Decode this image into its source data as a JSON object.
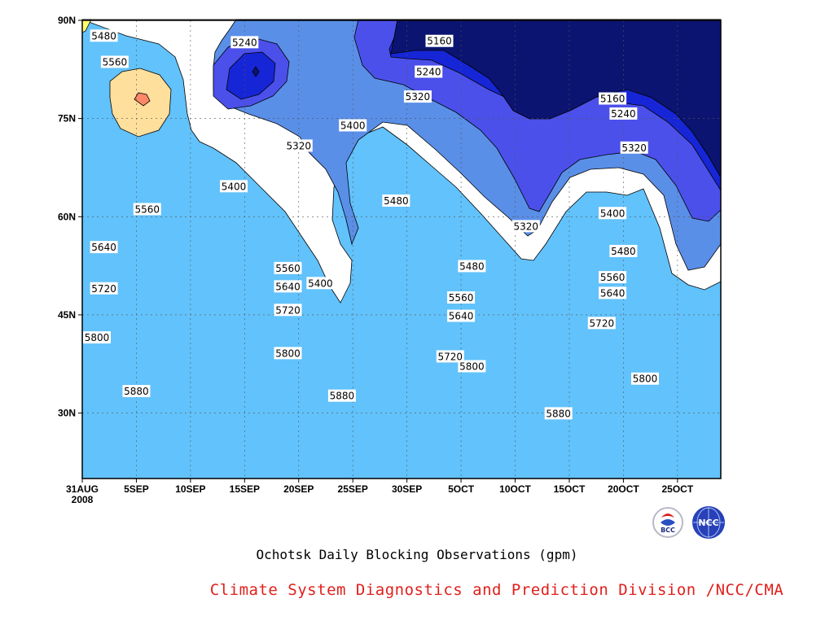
{
  "chart_data": {
    "type": "heatmap",
    "title": "Ochotsk Daily Blocking Observations (gpm)",
    "credit": "Climate System Diagnostics and Prediction Division /NCC/CMA",
    "x_ticks": [
      "31AUG\n2008",
      "5SEP",
      "10SEP",
      "15SEP",
      "20SEP",
      "25SEP",
      "30SEP",
      "5OCT",
      "10OCT",
      "15OCT",
      "20OCT",
      "25OCT"
    ],
    "y_ticks": [
      "30N",
      "45N",
      "60N",
      "75N",
      "90N"
    ],
    "xlim": [
      "2008-08-31",
      "2008-10-29"
    ],
    "ylim": [
      20,
      90
    ],
    "grid": true,
    "contour_levels": [
      5160,
      5240,
      5320,
      5400,
      5480,
      5560,
      5640,
      5720,
      5800,
      5880
    ],
    "contour_labels": [
      {
        "value": "5160",
        "x": "2008-10-03",
        "y": 86.8
      },
      {
        "value": "5160",
        "x": "2008-10-19",
        "y": 78.0
      },
      {
        "value": "5240",
        "x": "2008-09-15",
        "y": 86.6
      },
      {
        "value": "5240",
        "x": "2008-10-02",
        "y": 82.1
      },
      {
        "value": "5240",
        "x": "2008-10-20",
        "y": 75.7
      },
      {
        "value": "5320",
        "x": "2008-09-20",
        "y": 70.8
      },
      {
        "value": "5320",
        "x": "2008-10-01",
        "y": 78.3
      },
      {
        "value": "5320",
        "x": "2008-10-11",
        "y": 58.5
      },
      {
        "value": "5320",
        "x": "2008-10-21",
        "y": 70.5
      },
      {
        "value": "5400",
        "x": "2008-09-14",
        "y": 64.6
      },
      {
        "value": "5400",
        "x": "2008-09-25",
        "y": 73.9
      },
      {
        "value": "5400",
        "x": "2008-09-22",
        "y": 49.8
      },
      {
        "value": "5400",
        "x": "2008-10-19",
        "y": 60.5
      },
      {
        "value": "5480",
        "x": "2008-09-02",
        "y": 87.6
      },
      {
        "value": "5480",
        "x": "2008-09-29",
        "y": 62.4
      },
      {
        "value": "5480",
        "x": "2008-10-06",
        "y": 52.4
      },
      {
        "value": "5480",
        "x": "2008-10-20",
        "y": 54.7
      },
      {
        "value": "5560",
        "x": "2008-09-03",
        "y": 83.6
      },
      {
        "value": "5560",
        "x": "2008-09-06",
        "y": 61.1
      },
      {
        "value": "5560",
        "x": "2008-09-19",
        "y": 52.1
      },
      {
        "value": "5560",
        "x": "2008-10-05",
        "y": 47.6
      },
      {
        "value": "5560",
        "x": "2008-10-19",
        "y": 50.7
      },
      {
        "value": "5640",
        "x": "2008-09-02",
        "y": 55.3
      },
      {
        "value": "5640",
        "x": "2008-09-19",
        "y": 49.3
      },
      {
        "value": "5640",
        "x": "2008-10-05",
        "y": 44.8
      },
      {
        "value": "5640",
        "x": "2008-10-19",
        "y": 48.3
      },
      {
        "value": "5720",
        "x": "2008-09-02",
        "y": 49.0
      },
      {
        "value": "5720",
        "x": "2008-09-19",
        "y": 45.7
      },
      {
        "value": "5720",
        "x": "2008-10-04",
        "y": 38.6
      },
      {
        "value": "5720",
        "x": "2008-10-18",
        "y": 43.7
      },
      {
        "value": "5800",
        "x": "2008-08-31",
        "y": 41.5
      },
      {
        "value": "5800",
        "x": "2008-09-19",
        "y": 39.1
      },
      {
        "value": "5800",
        "x": "2008-10-06",
        "y": 37.1
      },
      {
        "value": "5800",
        "x": "2008-10-22",
        "y": 35.2
      },
      {
        "value": "5880",
        "x": "2008-09-05",
        "y": 33.3
      },
      {
        "value": "5880",
        "x": "2008-09-24",
        "y": 32.6
      },
      {
        "value": "5880",
        "x": "2008-10-14",
        "y": 29.9
      }
    ]
  },
  "colors": {
    "lt5160": "#0b1470",
    "b5160": "#1626d6",
    "b5240": "#4b50ea",
    "b5320": "#5a8fe8",
    "b5400": "#62c2fb",
    "b5480": "#ffff70",
    "b5560": "#ffdf9c",
    "b5640": "#ffa066",
    "b5720": "#ff7349",
    "b5800": "#f8697a",
    "gt5880": "#f2384d",
    "max_spot": "#ff8868",
    "credit_text": "#e0201c"
  },
  "logos": [
    {
      "icon": "bcc-logo",
      "text": "BCC"
    },
    {
      "icon": "ncc-logo",
      "text": "NCC"
    }
  ]
}
